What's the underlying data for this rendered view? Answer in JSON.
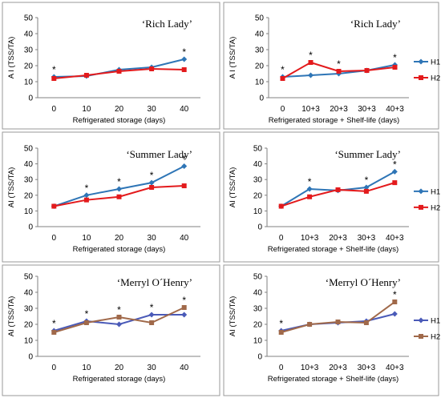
{
  "chart_data": [
    {
      "type": "line",
      "title": "‘Rich Lady’",
      "xlabel": "Refrigerated storage (days)",
      "ylabel": "A I (TSS/TA)",
      "categories": [
        "0",
        "10",
        "20",
        "30",
        "40"
      ],
      "ylim": [
        0,
        50
      ],
      "yticks": [
        "0",
        "10",
        "20",
        "30",
        "40",
        "50"
      ],
      "significant": [
        true,
        false,
        false,
        false,
        true
      ],
      "legend": [],
      "series": [
        {
          "values": [
            13,
            13.5,
            17.5,
            19,
            24
          ],
          "color": "#2E75B6",
          "marker": "diamond"
        },
        {
          "values": [
            12,
            14,
            16.5,
            18,
            17.5
          ],
          "color": "#E31A1C",
          "marker": "square"
        }
      ]
    },
    {
      "type": "line",
      "title": "‘Rich Lady’",
      "xlabel": "Refrigerated storage + Shelf-life (days)",
      "ylabel": "A I (TSS/TA)",
      "categories": [
        "0",
        "10+3",
        "20+3",
        "30+3",
        "40+3"
      ],
      "ylim": [
        0,
        50
      ],
      "yticks": [
        "0",
        "10",
        "20",
        "30",
        "40",
        "50"
      ],
      "significant": [
        true,
        true,
        true,
        false,
        true
      ],
      "legend": [
        "H1",
        "H2"
      ],
      "series": [
        {
          "name": "H1",
          "values": [
            13,
            14,
            15,
            17,
            20.5
          ],
          "color": "#2E75B6",
          "marker": "diamond"
        },
        {
          "name": "H2",
          "values": [
            12,
            22,
            16.5,
            17,
            19
          ],
          "color": "#E31A1C",
          "marker": "square"
        }
      ]
    },
    {
      "type": "line",
      "title": "‘Summer Lady’",
      "xlabel": "Refrigerated storage (days)",
      "ylabel": "AI (TSS/TA)",
      "categories": [
        "0",
        "10",
        "20",
        "30",
        "40"
      ],
      "ylim": [
        0,
        50
      ],
      "yticks": [
        "0",
        "10",
        "20",
        "30",
        "40",
        "50"
      ],
      "significant": [
        false,
        true,
        true,
        true,
        true
      ],
      "legend": [],
      "series": [
        {
          "values": [
            13,
            20,
            24,
            28,
            38.5
          ],
          "color": "#2E75B6",
          "marker": "diamond"
        },
        {
          "values": [
            13,
            17,
            19,
            25,
            26
          ],
          "color": "#E31A1C",
          "marker": "square"
        }
      ]
    },
    {
      "type": "line",
      "title": "‘Summer Lady’",
      "xlabel": "Refrigerated storage + Shelf-life (days)",
      "ylabel": "AI (TSS/TA)",
      "categories": [
        "0",
        "10+3",
        "20+3",
        "30+3",
        "40+3"
      ],
      "ylim": [
        0,
        50
      ],
      "yticks": [
        "0",
        "10",
        "20",
        "30",
        "40",
        "50"
      ],
      "significant": [
        false,
        true,
        false,
        true,
        true
      ],
      "legend": [
        "H1",
        "H2"
      ],
      "series": [
        {
          "name": "H1",
          "values": [
            13,
            24,
            23,
            25,
            35
          ],
          "color": "#2E75B6",
          "marker": "diamond"
        },
        {
          "name": "H2",
          "values": [
            13,
            19,
            23.5,
            22.5,
            28
          ],
          "color": "#E31A1C",
          "marker": "square"
        }
      ]
    },
    {
      "type": "line",
      "title": "‘Merryl O´Henry’",
      "xlabel": "Refrigerated storage (days)",
      "ylabel": "AI (TSS/TA)",
      "categories": [
        "0",
        "10",
        "20",
        "30",
        "40"
      ],
      "ylim": [
        0,
        50
      ],
      "yticks": [
        "0",
        "10",
        "20",
        "30",
        "40",
        "50"
      ],
      "significant": [
        true,
        true,
        true,
        true,
        true
      ],
      "legend": [],
      "series": [
        {
          "values": [
            16,
            22,
            20,
            26,
            26
          ],
          "color": "#4A5AB8",
          "marker": "diamond"
        },
        {
          "values": [
            15,
            21,
            24.5,
            21,
            30.5
          ],
          "color": "#A0694A",
          "marker": "square"
        }
      ]
    },
    {
      "type": "line",
      "title": "‘Merryl O´Henry’",
      "xlabel": "Refrigerated storage + Shelf-life (days)",
      "ylabel": "AI (TSS/TA)",
      "categories": [
        "0",
        "10+3",
        "20+3",
        "30+3",
        "40+3"
      ],
      "ylim": [
        0,
        50
      ],
      "yticks": [
        "0",
        "10",
        "20",
        "30",
        "40",
        "50"
      ],
      "significant": [
        true,
        false,
        false,
        false,
        true
      ],
      "legend": [
        "H1",
        "H2"
      ],
      "series": [
        {
          "name": "H1",
          "values": [
            16,
            20,
            21,
            22,
            26.5
          ],
          "color": "#4A5AB8",
          "marker": "diamond"
        },
        {
          "name": "H2",
          "values": [
            15,
            20,
            21.5,
            21,
            34
          ],
          "color": "#A0694A",
          "marker": "square"
        }
      ]
    }
  ]
}
